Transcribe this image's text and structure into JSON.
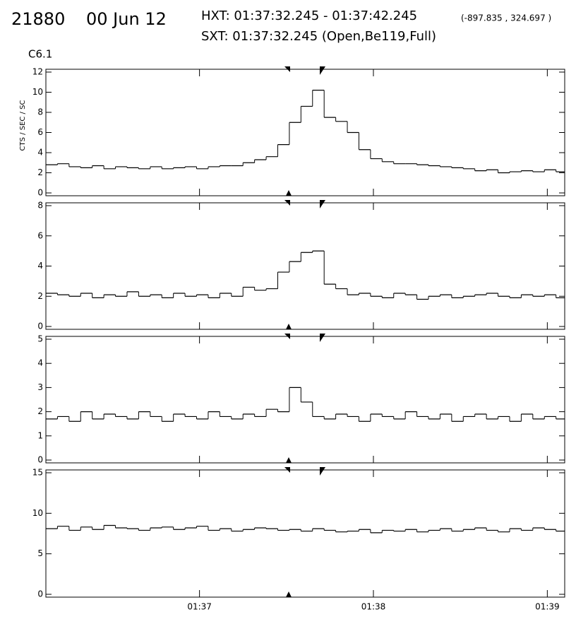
{
  "header": {
    "id": "21880",
    "date": "00 Jun 12",
    "hxt": "HXT: 01:37:32.245 - 01:37:42.245",
    "position": "(-897.835 , 324.697 )",
    "sxt": "SXT: 01:37:32.245 (Open,Be119,Full)",
    "flare_class": "C6.1"
  },
  "chart_data": [
    {
      "type": "step",
      "y_label": "CTS / SEC / SC",
      "xlim": [
        5767,
        5946
      ],
      "ylim": [
        0,
        12
      ],
      "yticks": [
        0,
        2,
        4,
        6,
        8,
        10,
        12
      ],
      "x": [
        5767,
        5771,
        5775,
        5779,
        5783,
        5787,
        5791,
        5795,
        5799,
        5803,
        5807,
        5811,
        5815,
        5819,
        5823,
        5827,
        5831,
        5835,
        5839,
        5843,
        5847,
        5851,
        5855,
        5859,
        5863,
        5867,
        5871,
        5875,
        5879,
        5883,
        5887,
        5891,
        5895,
        5899,
        5903,
        5907,
        5911,
        5915,
        5919,
        5923,
        5927,
        5931,
        5935,
        5939,
        5943
      ],
      "values": [
        2.8,
        2.9,
        2.6,
        2.5,
        2.7,
        2.4,
        2.6,
        2.5,
        2.4,
        2.6,
        2.4,
        2.5,
        2.6,
        2.4,
        2.6,
        2.7,
        2.7,
        3.0,
        3.3,
        3.6,
        4.8,
        7.0,
        8.6,
        10.2,
        7.5,
        7.1,
        6.0,
        4.3,
        3.4,
        3.1,
        2.9,
        2.9,
        2.8,
        2.7,
        2.6,
        2.5,
        2.4,
        2.2,
        2.3,
        2.0,
        2.1,
        2.2,
        2.1,
        2.3,
        2.1
      ]
    },
    {
      "type": "step",
      "xlim": [
        5767,
        5946
      ],
      "ylim": [
        0,
        8
      ],
      "yticks": [
        0,
        2,
        4,
        6,
        8
      ],
      "x": [
        5767,
        5771,
        5775,
        5779,
        5783,
        5787,
        5791,
        5795,
        5799,
        5803,
        5807,
        5811,
        5815,
        5819,
        5823,
        5827,
        5831,
        5835,
        5839,
        5843,
        5847,
        5851,
        5855,
        5859,
        5863,
        5867,
        5871,
        5875,
        5879,
        5883,
        5887,
        5891,
        5895,
        5899,
        5903,
        5907,
        5911,
        5915,
        5919,
        5923,
        5927,
        5931,
        5935,
        5939,
        5943
      ],
      "values": [
        2.2,
        2.1,
        2.0,
        2.2,
        1.9,
        2.1,
        2.0,
        2.3,
        2.0,
        2.1,
        1.9,
        2.2,
        2.0,
        2.1,
        1.9,
        2.2,
        2.0,
        2.6,
        2.4,
        2.5,
        3.6,
        4.3,
        4.9,
        5.0,
        2.8,
        2.5,
        2.1,
        2.2,
        2.0,
        1.9,
        2.2,
        2.1,
        1.8,
        2.0,
        2.1,
        1.9,
        2.0,
        2.1,
        2.2,
        2.0,
        1.9,
        2.1,
        2.0,
        2.1,
        1.9
      ]
    },
    {
      "type": "step",
      "xlim": [
        5767,
        5946
      ],
      "ylim": [
        0,
        5
      ],
      "yticks": [
        0,
        1,
        2,
        3,
        4,
        5
      ],
      "x": [
        5767,
        5771,
        5775,
        5779,
        5783,
        5787,
        5791,
        5795,
        5799,
        5803,
        5807,
        5811,
        5815,
        5819,
        5823,
        5827,
        5831,
        5835,
        5839,
        5843,
        5847,
        5851,
        5855,
        5859,
        5863,
        5867,
        5871,
        5875,
        5879,
        5883,
        5887,
        5891,
        5895,
        5899,
        5903,
        5907,
        5911,
        5915,
        5919,
        5923,
        5927,
        5931,
        5935,
        5939,
        5943
      ],
      "values": [
        1.7,
        1.8,
        1.6,
        2.0,
        1.7,
        1.9,
        1.8,
        1.7,
        2.0,
        1.8,
        1.6,
        1.9,
        1.8,
        1.7,
        2.0,
        1.8,
        1.7,
        1.9,
        1.8,
        2.1,
        2.0,
        3.0,
        2.4,
        1.8,
        1.7,
        1.9,
        1.8,
        1.6,
        1.9,
        1.8,
        1.7,
        2.0,
        1.8,
        1.7,
        1.9,
        1.6,
        1.8,
        1.9,
        1.7,
        1.8,
        1.6,
        1.9,
        1.7,
        1.8,
        1.7
      ]
    },
    {
      "type": "step",
      "xlim": [
        5767,
        5946
      ],
      "ylim": [
        0,
        15
      ],
      "yticks": [
        0,
        5,
        10,
        15
      ],
      "xticks": [
        {
          "value": 5820,
          "label": "01:37"
        },
        {
          "value": 5880,
          "label": "01:38"
        },
        {
          "value": 5940,
          "label": "01:39"
        }
      ],
      "x": [
        5767,
        5771,
        5775,
        5779,
        5783,
        5787,
        5791,
        5795,
        5799,
        5803,
        5807,
        5811,
        5815,
        5819,
        5823,
        5827,
        5831,
        5835,
        5839,
        5843,
        5847,
        5851,
        5855,
        5859,
        5863,
        5867,
        5871,
        5875,
        5879,
        5883,
        5887,
        5891,
        5895,
        5899,
        5903,
        5907,
        5911,
        5915,
        5919,
        5923,
        5927,
        5931,
        5935,
        5939,
        5943
      ],
      "values": [
        8.1,
        8.4,
        7.9,
        8.3,
        8.0,
        8.5,
        8.2,
        8.1,
        7.9,
        8.2,
        8.3,
        8.0,
        8.2,
        8.4,
        7.9,
        8.1,
        7.8,
        8.0,
        8.2,
        8.1,
        7.9,
        8.0,
        7.8,
        8.1,
        7.9,
        7.7,
        7.8,
        8.0,
        7.6,
        7.9,
        7.8,
        8.0,
        7.7,
        7.9,
        8.1,
        7.8,
        8.0,
        8.2,
        7.9,
        7.7,
        8.1,
        7.9,
        8.2,
        8.0,
        7.8
      ]
    }
  ]
}
